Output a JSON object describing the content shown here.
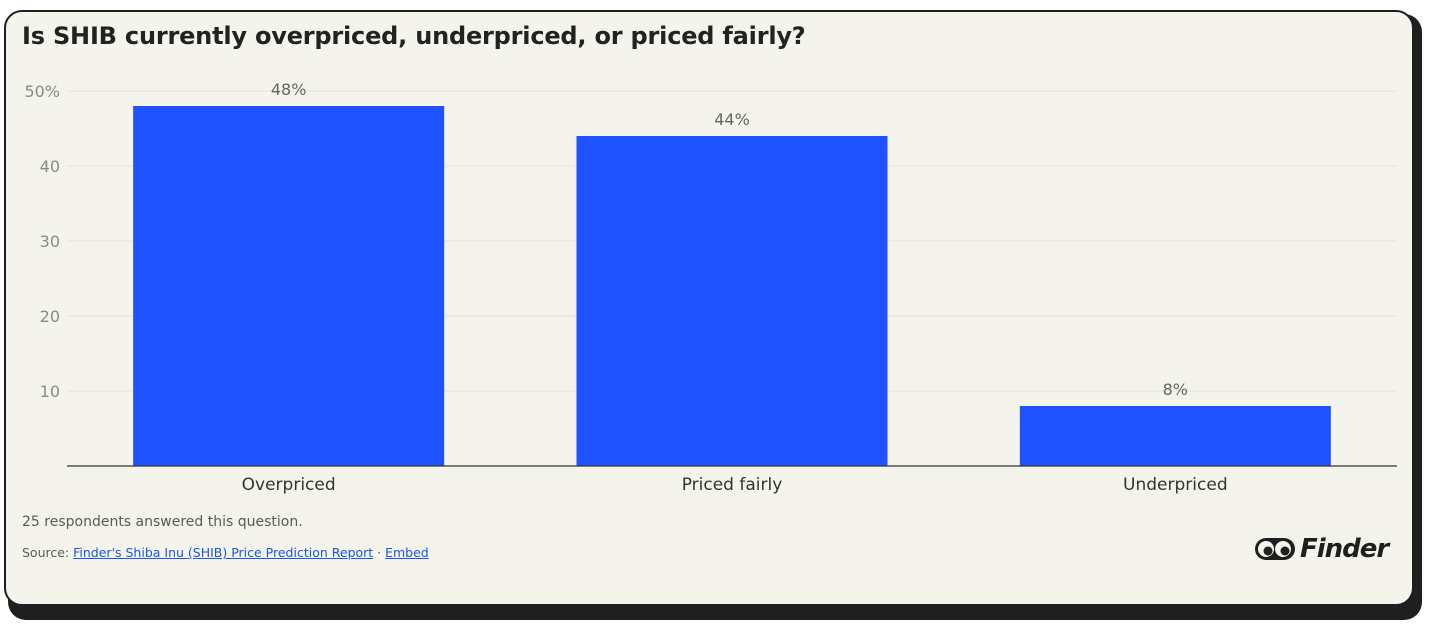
{
  "chart_data": {
    "type": "bar",
    "title": "Is SHIB currently overpriced, underpriced, or priced fairly?",
    "categories": [
      "Overpriced",
      "Priced fairly",
      "Underpriced"
    ],
    "values": [
      48,
      44,
      8
    ],
    "value_labels": [
      "48%",
      "44%",
      "8%"
    ],
    "y_ticks": [
      10,
      20,
      30,
      40,
      50
    ],
    "y_tick_labels": [
      "10",
      "20",
      "30",
      "40",
      "50%"
    ],
    "ylim": [
      0,
      50
    ],
    "grid": true,
    "bar_color": "#1f51ff"
  },
  "footer": {
    "note": "25 respondents answered this question.",
    "source_prefix": "Source: ",
    "source_link": "Finder's Shiba Inu (SHIB) Price Prediction Report",
    "separator": " · ",
    "embed_link": "Embed"
  },
  "brand": {
    "name": "Finder",
    "logo_icon": "eyes-icon"
  }
}
